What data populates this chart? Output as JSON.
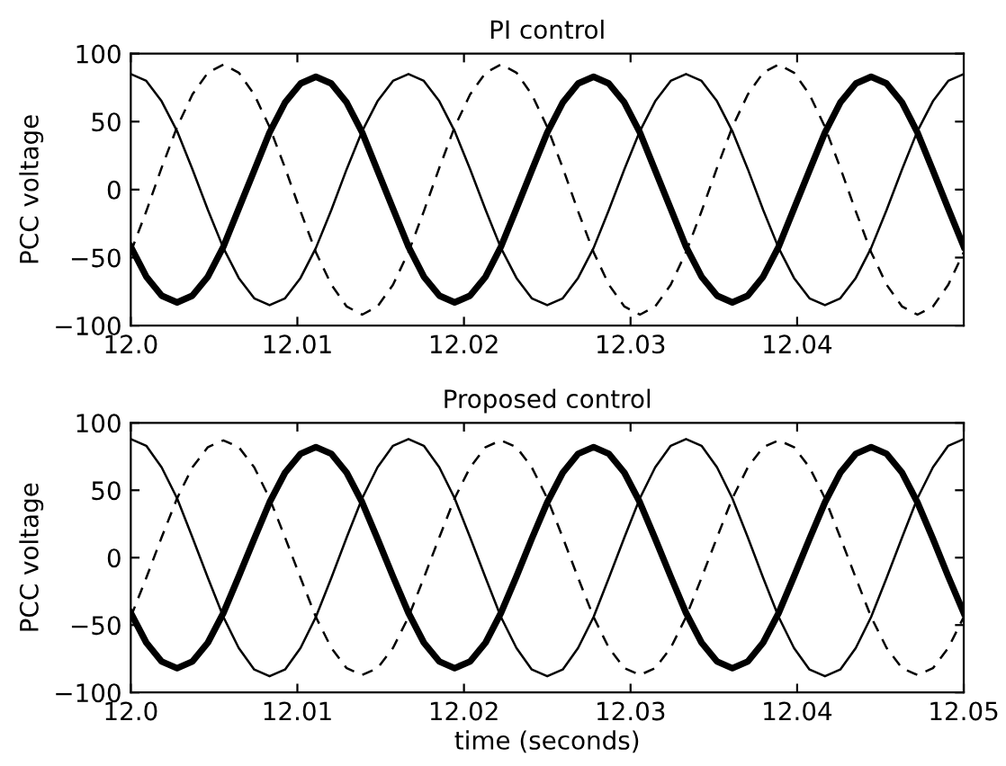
{
  "chart_data": [
    {
      "type": "line",
      "title": "PI control",
      "ylabel": "PCC voltage",
      "xlim": [
        12.0,
        12.05
      ],
      "ylim": [
        -100,
        100
      ],
      "xticks": [
        {
          "value": 12.0,
          "label": "12.0"
        },
        12.01,
        12.02,
        12.03,
        12.04
      ],
      "yticks": [
        -100,
        -50,
        0,
        50,
        100
      ],
      "grid": false,
      "legend": false,
      "x": [
        12.0,
        12.00093,
        12.00185,
        12.00278,
        12.0037,
        12.00463,
        12.00556,
        12.00648,
        12.00741,
        12.00833,
        12.00926,
        12.01019,
        12.01111,
        12.01204,
        12.01296,
        12.01389,
        12.01481,
        12.01574,
        12.01667,
        12.01759,
        12.01852,
        12.01944,
        12.02037,
        12.0213,
        12.02222,
        12.02315,
        12.02407,
        12.025,
        12.02593,
        12.02685,
        12.02778,
        12.0287,
        12.02963,
        12.03056,
        12.03148,
        12.03241,
        12.03333,
        12.03426,
        12.03519,
        12.03611,
        12.03704,
        12.03796,
        12.03889,
        12.03981,
        12.04074,
        12.04167,
        12.04259,
        12.04352,
        12.04444,
        12.04537,
        12.0463,
        12.04722,
        12.04815,
        12.04907,
        12.05
      ],
      "series": [
        {
          "color": "#000000",
          "line_style": "solid",
          "values": [
            85,
            80,
            65,
            43,
            15,
            -15,
            -43,
            -65,
            -80,
            -85,
            -80,
            -65,
            -43,
            -15,
            15,
            43,
            65,
            80,
            85,
            80,
            65,
            43,
            15,
            -15,
            -43,
            -65,
            -80,
            -85,
            -80,
            -65,
            -43,
            -15,
            15,
            43,
            65,
            80,
            85,
            80,
            65,
            43,
            15,
            -15,
            -43,
            -65,
            -80,
            -85,
            -80,
            -65,
            -43,
            -15,
            15,
            43,
            65,
            80,
            85
          ]
        },
        {
          "color": "#000000",
          "line_style": "dashed",
          "values": [
            -46,
            -16,
            16,
            46,
            70,
            86,
            92,
            86,
            70,
            46,
            16,
            -16,
            -46,
            -70,
            -86,
            -92,
            -86,
            -70,
            -46,
            -16,
            16,
            46,
            70,
            86,
            92,
            86,
            70,
            46,
            16,
            -16,
            -46,
            -70,
            -86,
            -92,
            -86,
            -70,
            -46,
            -16,
            16,
            46,
            70,
            86,
            92,
            86,
            70,
            46,
            16,
            -16,
            -46,
            -70,
            -86,
            -92,
            -86,
            -70,
            -46
          ]
        },
        {
          "color": "#000000",
          "line_style": "solid",
          "values": [
            -42,
            -64,
            -78,
            -83,
            -78,
            -64,
            -42,
            -14,
            14,
            42,
            64,
            78,
            83,
            78,
            64,
            42,
            14,
            -14,
            -42,
            -64,
            -78,
            -83,
            -78,
            -64,
            -42,
            -14,
            14,
            42,
            64,
            78,
            83,
            78,
            64,
            42,
            14,
            -14,
            -42,
            -64,
            -78,
            -83,
            -78,
            -64,
            -42,
            -14,
            14,
            42,
            64,
            78,
            83,
            78,
            64,
            42,
            14,
            -14,
            -42
          ]
        }
      ]
    },
    {
      "type": "line",
      "title": "Proposed control",
      "xlabel": "time (seconds)",
      "ylabel": "PCC voltage",
      "xlim": [
        12.0,
        12.05
      ],
      "ylim": [
        -100,
        100
      ],
      "xticks": [
        {
          "value": 12.0,
          "label": "12.0"
        },
        12.01,
        12.02,
        12.03,
        12.04,
        12.05
      ],
      "yticks": [
        -100,
        -50,
        0,
        50,
        100
      ],
      "grid": false,
      "legend": false,
      "x": [
        12.0,
        12.00093,
        12.00185,
        12.00278,
        12.0037,
        12.00463,
        12.00556,
        12.00648,
        12.00741,
        12.00833,
        12.00926,
        12.01019,
        12.01111,
        12.01204,
        12.01296,
        12.01389,
        12.01481,
        12.01574,
        12.01667,
        12.01759,
        12.01852,
        12.01944,
        12.02037,
        12.0213,
        12.02222,
        12.02315,
        12.02407,
        12.025,
        12.02593,
        12.02685,
        12.02778,
        12.0287,
        12.02963,
        12.03056,
        12.03148,
        12.03241,
        12.03333,
        12.03426,
        12.03519,
        12.03611,
        12.03704,
        12.03796,
        12.03889,
        12.03981,
        12.04074,
        12.04167,
        12.04259,
        12.04352,
        12.04444,
        12.04537,
        12.0463,
        12.04722,
        12.04815,
        12.04907,
        12.05
      ],
      "series": [
        {
          "color": "#000000",
          "line_style": "solid",
          "values": [
            88,
            83,
            67,
            44,
            15,
            -15,
            -44,
            -67,
            -83,
            -88,
            -83,
            -67,
            -44,
            -15,
            15,
            44,
            67,
            83,
            88,
            83,
            67,
            44,
            15,
            -15,
            -44,
            -67,
            -83,
            -88,
            -83,
            -67,
            -44,
            -15,
            15,
            44,
            67,
            83,
            88,
            83,
            67,
            44,
            15,
            -15,
            -44,
            -67,
            -83,
            -88,
            -83,
            -67,
            -44,
            -15,
            15,
            44,
            67,
            83,
            88
          ]
        },
        {
          "color": "#000000",
          "line_style": "dashed",
          "values": [
            -44,
            -15,
            15,
            44,
            67,
            82,
            87,
            82,
            67,
            44,
            15,
            -15,
            -44,
            -67,
            -82,
            -87,
            -82,
            -67,
            -44,
            -15,
            15,
            44,
            67,
            82,
            87,
            82,
            67,
            44,
            15,
            -15,
            -44,
            -67,
            -82,
            -87,
            -82,
            -67,
            -44,
            -15,
            15,
            44,
            67,
            82,
            87,
            82,
            67,
            44,
            15,
            -15,
            -44,
            -67,
            -82,
            -87,
            -82,
            -67,
            -44
          ]
        },
        {
          "color": "#000000",
          "line_style": "solid",
          "values": [
            -41,
            -63,
            -77,
            -82,
            -77,
            -63,
            -41,
            -14,
            14,
            41,
            63,
            77,
            82,
            77,
            63,
            41,
            14,
            -14,
            -41,
            -63,
            -77,
            -82,
            -77,
            -63,
            -41,
            -14,
            14,
            41,
            63,
            77,
            82,
            77,
            63,
            41,
            14,
            -14,
            -41,
            -63,
            -77,
            -82,
            -77,
            -63,
            -41,
            -14,
            14,
            41,
            63,
            77,
            82,
            77,
            63,
            41,
            14,
            -14,
            -41
          ]
        }
      ]
    }
  ]
}
